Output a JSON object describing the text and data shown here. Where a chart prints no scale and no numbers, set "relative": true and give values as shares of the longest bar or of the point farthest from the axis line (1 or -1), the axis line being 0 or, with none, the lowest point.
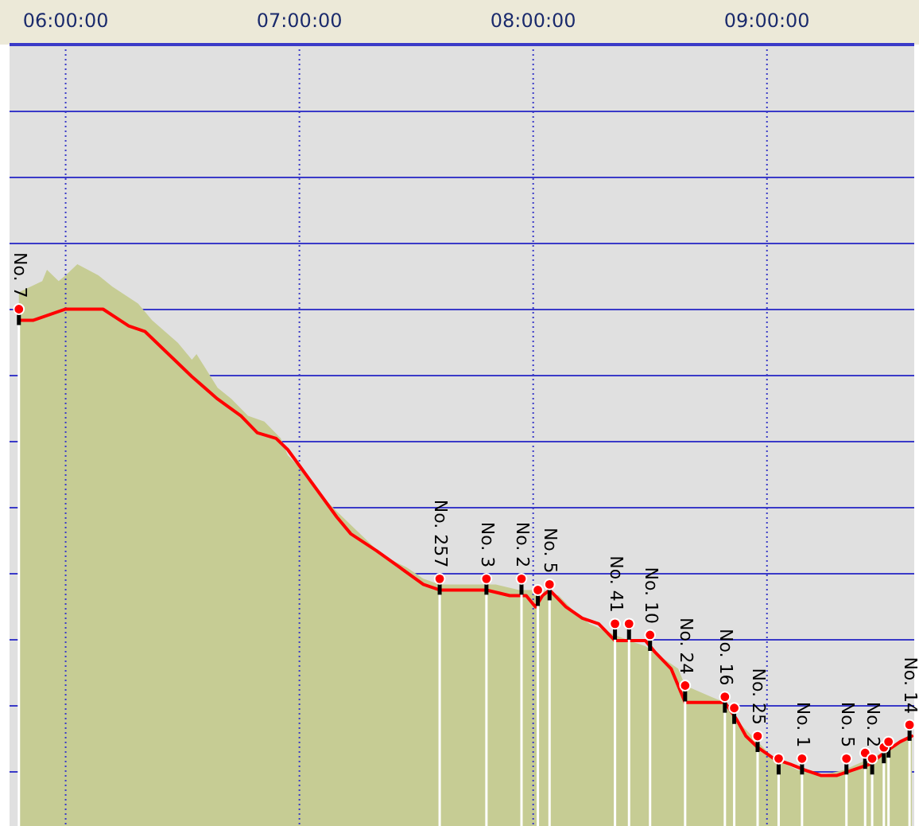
{
  "chart_data": {
    "type": "line",
    "relative": true,
    "grid": true,
    "xlim": [
      5.76,
      9.63
    ],
    "xticks": [
      {
        "value": 6,
        "label": "06:00:00"
      },
      {
        "value": 7,
        "label": "07:00:00"
      },
      {
        "value": 8,
        "label": "08:00:00"
      },
      {
        "value": 9,
        "label": "09:00:00"
      }
    ],
    "series": [
      {
        "type": "area",
        "color": "#c6cc94",
        "x": [
          5.8,
          5.9,
          5.92,
          5.97,
          6.0,
          6.05,
          6.14,
          6.2,
          6.31,
          6.37,
          6.48,
          6.54,
          6.56,
          6.59,
          6.65,
          6.71,
          6.78,
          6.85,
          6.92,
          6.95,
          7.02,
          7.09,
          7.16,
          7.26,
          7.36,
          7.46,
          7.53,
          7.6,
          7.7,
          7.84,
          7.94,
          8.04,
          8.11,
          8.18,
          8.24,
          8.35,
          8.41,
          8.48,
          8.55,
          8.62,
          8.65,
          8.76,
          8.82,
          8.89,
          8.96,
          9.03,
          9.13,
          9.23,
          9.33,
          9.44,
          9.54,
          9.62
        ],
        "values": [
          0.95,
          0.97,
          0.99,
          0.97,
          0.98,
          1.0,
          0.98,
          0.96,
          0.93,
          0.9,
          0.86,
          0.83,
          0.84,
          0.82,
          0.78,
          0.76,
          0.73,
          0.72,
          0.69,
          0.66,
          0.63,
          0.59,
          0.56,
          0.52,
          0.48,
          0.46,
          0.44,
          0.43,
          0.43,
          0.43,
          0.42,
          0.42,
          0.41,
          0.38,
          0.36,
          0.34,
          0.33,
          0.32,
          0.3,
          0.28,
          0.25,
          0.23,
          0.22,
          0.18,
          0.15,
          0.12,
          0.1,
          0.09,
          0.1,
          0.12,
          0.14,
          0.16
        ]
      },
      {
        "type": "line",
        "color": "#ff0000",
        "marker": "none",
        "x": [
          5.8,
          5.86,
          6.0,
          6.16,
          6.27,
          6.34,
          6.44,
          6.54,
          6.65,
          6.75,
          6.82,
          6.9,
          6.95,
          7.02,
          7.09,
          7.16,
          7.22,
          7.33,
          7.43,
          7.53,
          7.6,
          7.7,
          7.8,
          7.9,
          7.97,
          8.01,
          8.04,
          8.07,
          8.14,
          8.21,
          8.28,
          8.35,
          8.41,
          8.48,
          8.52,
          8.59,
          8.65,
          8.72,
          8.79,
          8.82,
          8.87,
          8.91,
          8.96,
          9.03,
          9.1,
          9.16,
          9.23,
          9.3,
          9.37,
          9.44,
          9.5,
          9.57,
          9.62
        ],
        "values": [
          0.9,
          0.9,
          0.92,
          0.92,
          0.89,
          0.88,
          0.84,
          0.8,
          0.76,
          0.73,
          0.7,
          0.69,
          0.67,
          0.63,
          0.59,
          0.55,
          0.52,
          0.49,
          0.46,
          0.43,
          0.42,
          0.42,
          0.42,
          0.41,
          0.41,
          0.39,
          0.41,
          0.42,
          0.39,
          0.37,
          0.36,
          0.33,
          0.33,
          0.33,
          0.31,
          0.28,
          0.22,
          0.22,
          0.22,
          0.22,
          0.19,
          0.16,
          0.14,
          0.12,
          0.11,
          0.1,
          0.09,
          0.09,
          0.1,
          0.11,
          0.13,
          0.15,
          0.16
        ]
      },
      {
        "type": "lollipop",
        "color": "#ff0000",
        "marker": "circle",
        "x": [
          5.8,
          7.6,
          7.8,
          7.95,
          8.02,
          8.07,
          8.35,
          8.41,
          8.5,
          8.65,
          8.82,
          8.86,
          8.96,
          9.05,
          9.15,
          9.34,
          9.42,
          9.45,
          9.5,
          9.52,
          9.61
        ],
        "values": [
          0.92,
          0.44,
          0.44,
          0.44,
          0.42,
          0.43,
          0.36,
          0.36,
          0.34,
          0.25,
          0.23,
          0.21,
          0.16,
          0.12,
          0.12,
          0.12,
          0.13,
          0.12,
          0.14,
          0.15,
          0.18
        ]
      }
    ],
    "annotations": [
      {
        "text": "No. 7",
        "x": 5.8,
        "y": 0.92
      },
      {
        "text": "No. 257",
        "x": 7.6,
        "y": 0.44
      },
      {
        "text": "No. 3",
        "x": 7.8,
        "y": 0.44
      },
      {
        "text": "No. 2",
        "x": 7.95,
        "y": 0.44
      },
      {
        "text": "No. 5",
        "x": 8.07,
        "y": 0.43
      },
      {
        "text": "No. 41",
        "x": 8.35,
        "y": 0.36
      },
      {
        "text": "No. 10",
        "x": 8.5,
        "y": 0.34
      },
      {
        "text": "No. 24",
        "x": 8.65,
        "y": 0.25
      },
      {
        "text": "No. 16",
        "x": 8.82,
        "y": 0.23
      },
      {
        "text": "No. 25",
        "x": 8.96,
        "y": 0.16
      },
      {
        "text": "No. 1",
        "x": 9.15,
        "y": 0.12
      },
      {
        "text": "No. 5",
        "x": 9.34,
        "y": 0.12
      },
      {
        "text": "No. 2",
        "x": 9.45,
        "y": 0.12
      },
      {
        "text": "No. 14",
        "x": 9.61,
        "y": 0.18
      }
    ]
  }
}
